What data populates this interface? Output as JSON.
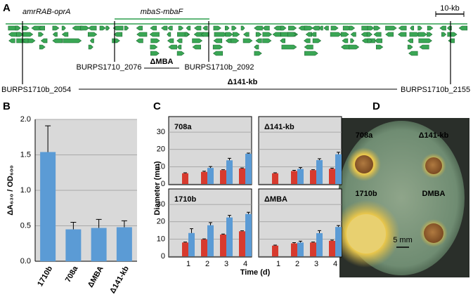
{
  "panel_labels": {
    "a": "A",
    "b": "B",
    "c": "C",
    "d": "D"
  },
  "gene_map": {
    "operon_left": "amrRAB-oprA",
    "operon_mid": "mbaS-mbaF",
    "scale_bar": "10-kb",
    "locus_2076": "BURPS1710_2076",
    "deletion_mba": "ΔMBA",
    "locus_2092": "BURPS1710b_2092",
    "deletion_141": "Δ141-kb",
    "locus_2054": "BURPS1710b_2054",
    "locus_2155": "BURPS1710b_2155"
  },
  "chart_data": [
    {
      "type": "bar",
      "ylabel": "ΔA₆₃₀ / OD₆₀₀",
      "categories": [
        "1710b",
        "708a",
        "ΔMBA",
        "Δ141-kb"
      ],
      "values": [
        1.54,
        0.45,
        0.47,
        0.48
      ],
      "errors": [
        0.37,
        0.1,
        0.12,
        0.09
      ],
      "color": "#5b9bd5",
      "ylim": [
        0,
        2
      ],
      "yticks": [
        {
          "value": 0,
          "label": "0.0"
        },
        0.5,
        {
          "value": 1,
          "label": "1.0"
        },
        1.5,
        {
          "value": 2,
          "label": "2.0"
        }
      ],
      "grid": true
    },
    {
      "type": "grouped-bar-grid",
      "xlabel": "Time (d)",
      "ylabel": "Diameter (mm)",
      "categories": [
        "1",
        "2",
        "3",
        "4"
      ],
      "ylim": [
        0,
        39
      ],
      "yticks": [
        0,
        10,
        20,
        30
      ],
      "grid": true,
      "panels": [
        {
          "title": "708a",
          "series": [
            {
              "color": "#d73a2e",
              "values": [
                6.2,
                7,
                8,
                9
              ],
              "errors": [
                0.3,
                0.4,
                0.3,
                0.3
              ]
            },
            {
              "color": "#5b9bd5",
              "values": [
                null,
                9.3,
                13.7,
                17.5
              ],
              "errors": [
                null,
                0.8,
                1.2,
                0.4
              ]
            }
          ]
        },
        {
          "title": "Δ141-kb",
          "series": [
            {
              "color": "#d73a2e",
              "values": [
                6.2,
                7.5,
                8,
                8.8
              ],
              "errors": [
                0.3,
                0.4,
                0.3,
                0.4
              ]
            },
            {
              "color": "#5b9bd5",
              "values": [
                null,
                8.7,
                13.8,
                17.2
              ],
              "errors": [
                null,
                0.8,
                0.8,
                1.2
              ]
            }
          ]
        },
        {
          "title": "1710b",
          "series": [
            {
              "color": "#d73a2e",
              "values": [
                8,
                9.8,
                12.6,
                14.5
              ],
              "errors": [
                0.3,
                0.3,
                0.3,
                0.3
              ]
            },
            {
              "color": "#5b9bd5",
              "values": [
                13.5,
                18,
                22.5,
                24.5
              ],
              "errors": [
                2.5,
                1.5,
                1.2,
                1
              ]
            }
          ]
        },
        {
          "title": "ΔMBA",
          "series": [
            {
              "color": "#d73a2e",
              "values": [
                6.2,
                7.5,
                8,
                9
              ],
              "errors": [
                0.3,
                0.4,
                0.3,
                0.4
              ]
            },
            {
              "color": "#5b9bd5",
              "values": [
                null,
                8,
                13.4,
                17
              ],
              "errors": [
                null,
                0.8,
                1.5,
                0.8
              ]
            }
          ]
        }
      ]
    }
  ],
  "plate": {
    "labels": [
      "708a",
      "Δ141-kb",
      "1710b",
      "DMBA"
    ],
    "scale_bar": "5 mm"
  }
}
